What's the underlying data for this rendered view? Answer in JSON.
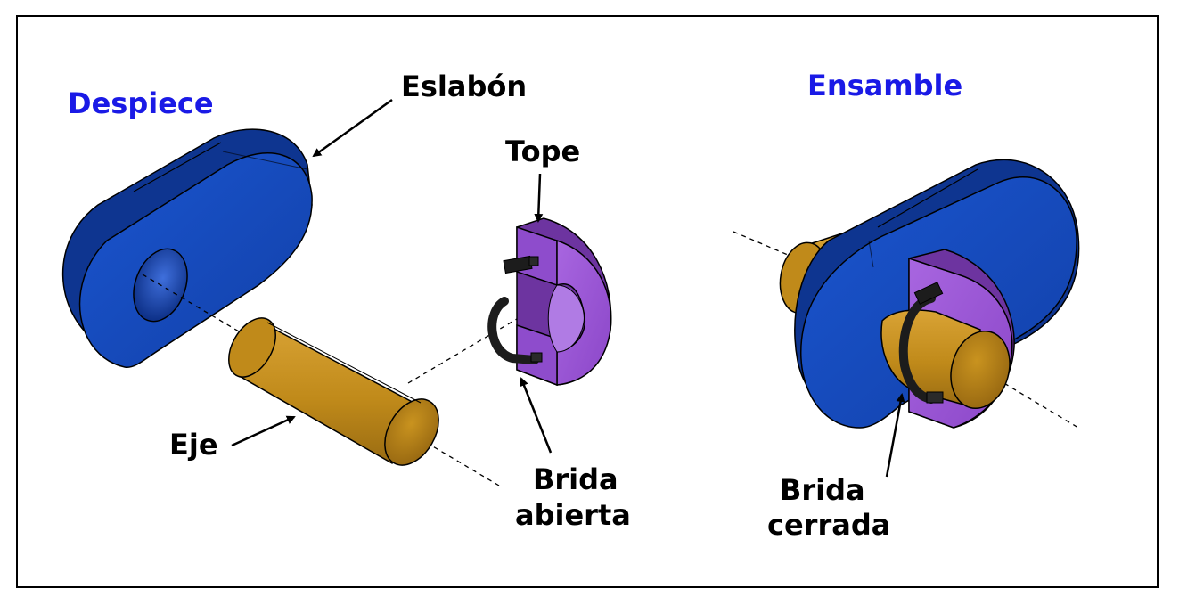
{
  "sections": {
    "exploded_title": "Despiece",
    "assembly_title": "Ensamble"
  },
  "labels": {
    "link": "Eslabón",
    "stop": "Tope",
    "shaft": "Eje",
    "open_clamp_line1": "Brida",
    "open_clamp_line2": "abierta",
    "closed_clamp_line1": "Brida",
    "closed_clamp_line2": "cerrada"
  },
  "colors": {
    "title_blue": "#1a1ae6",
    "link_blue": "#1446b8",
    "link_blue_dark": "#0e3590",
    "shaft_gold": "#c8921e",
    "shaft_gold_dark": "#8e6410",
    "clamp_purple": "#9b55d6",
    "clamp_purple_dark": "#6d34a0",
    "tab_black": "#1c1c1c"
  }
}
